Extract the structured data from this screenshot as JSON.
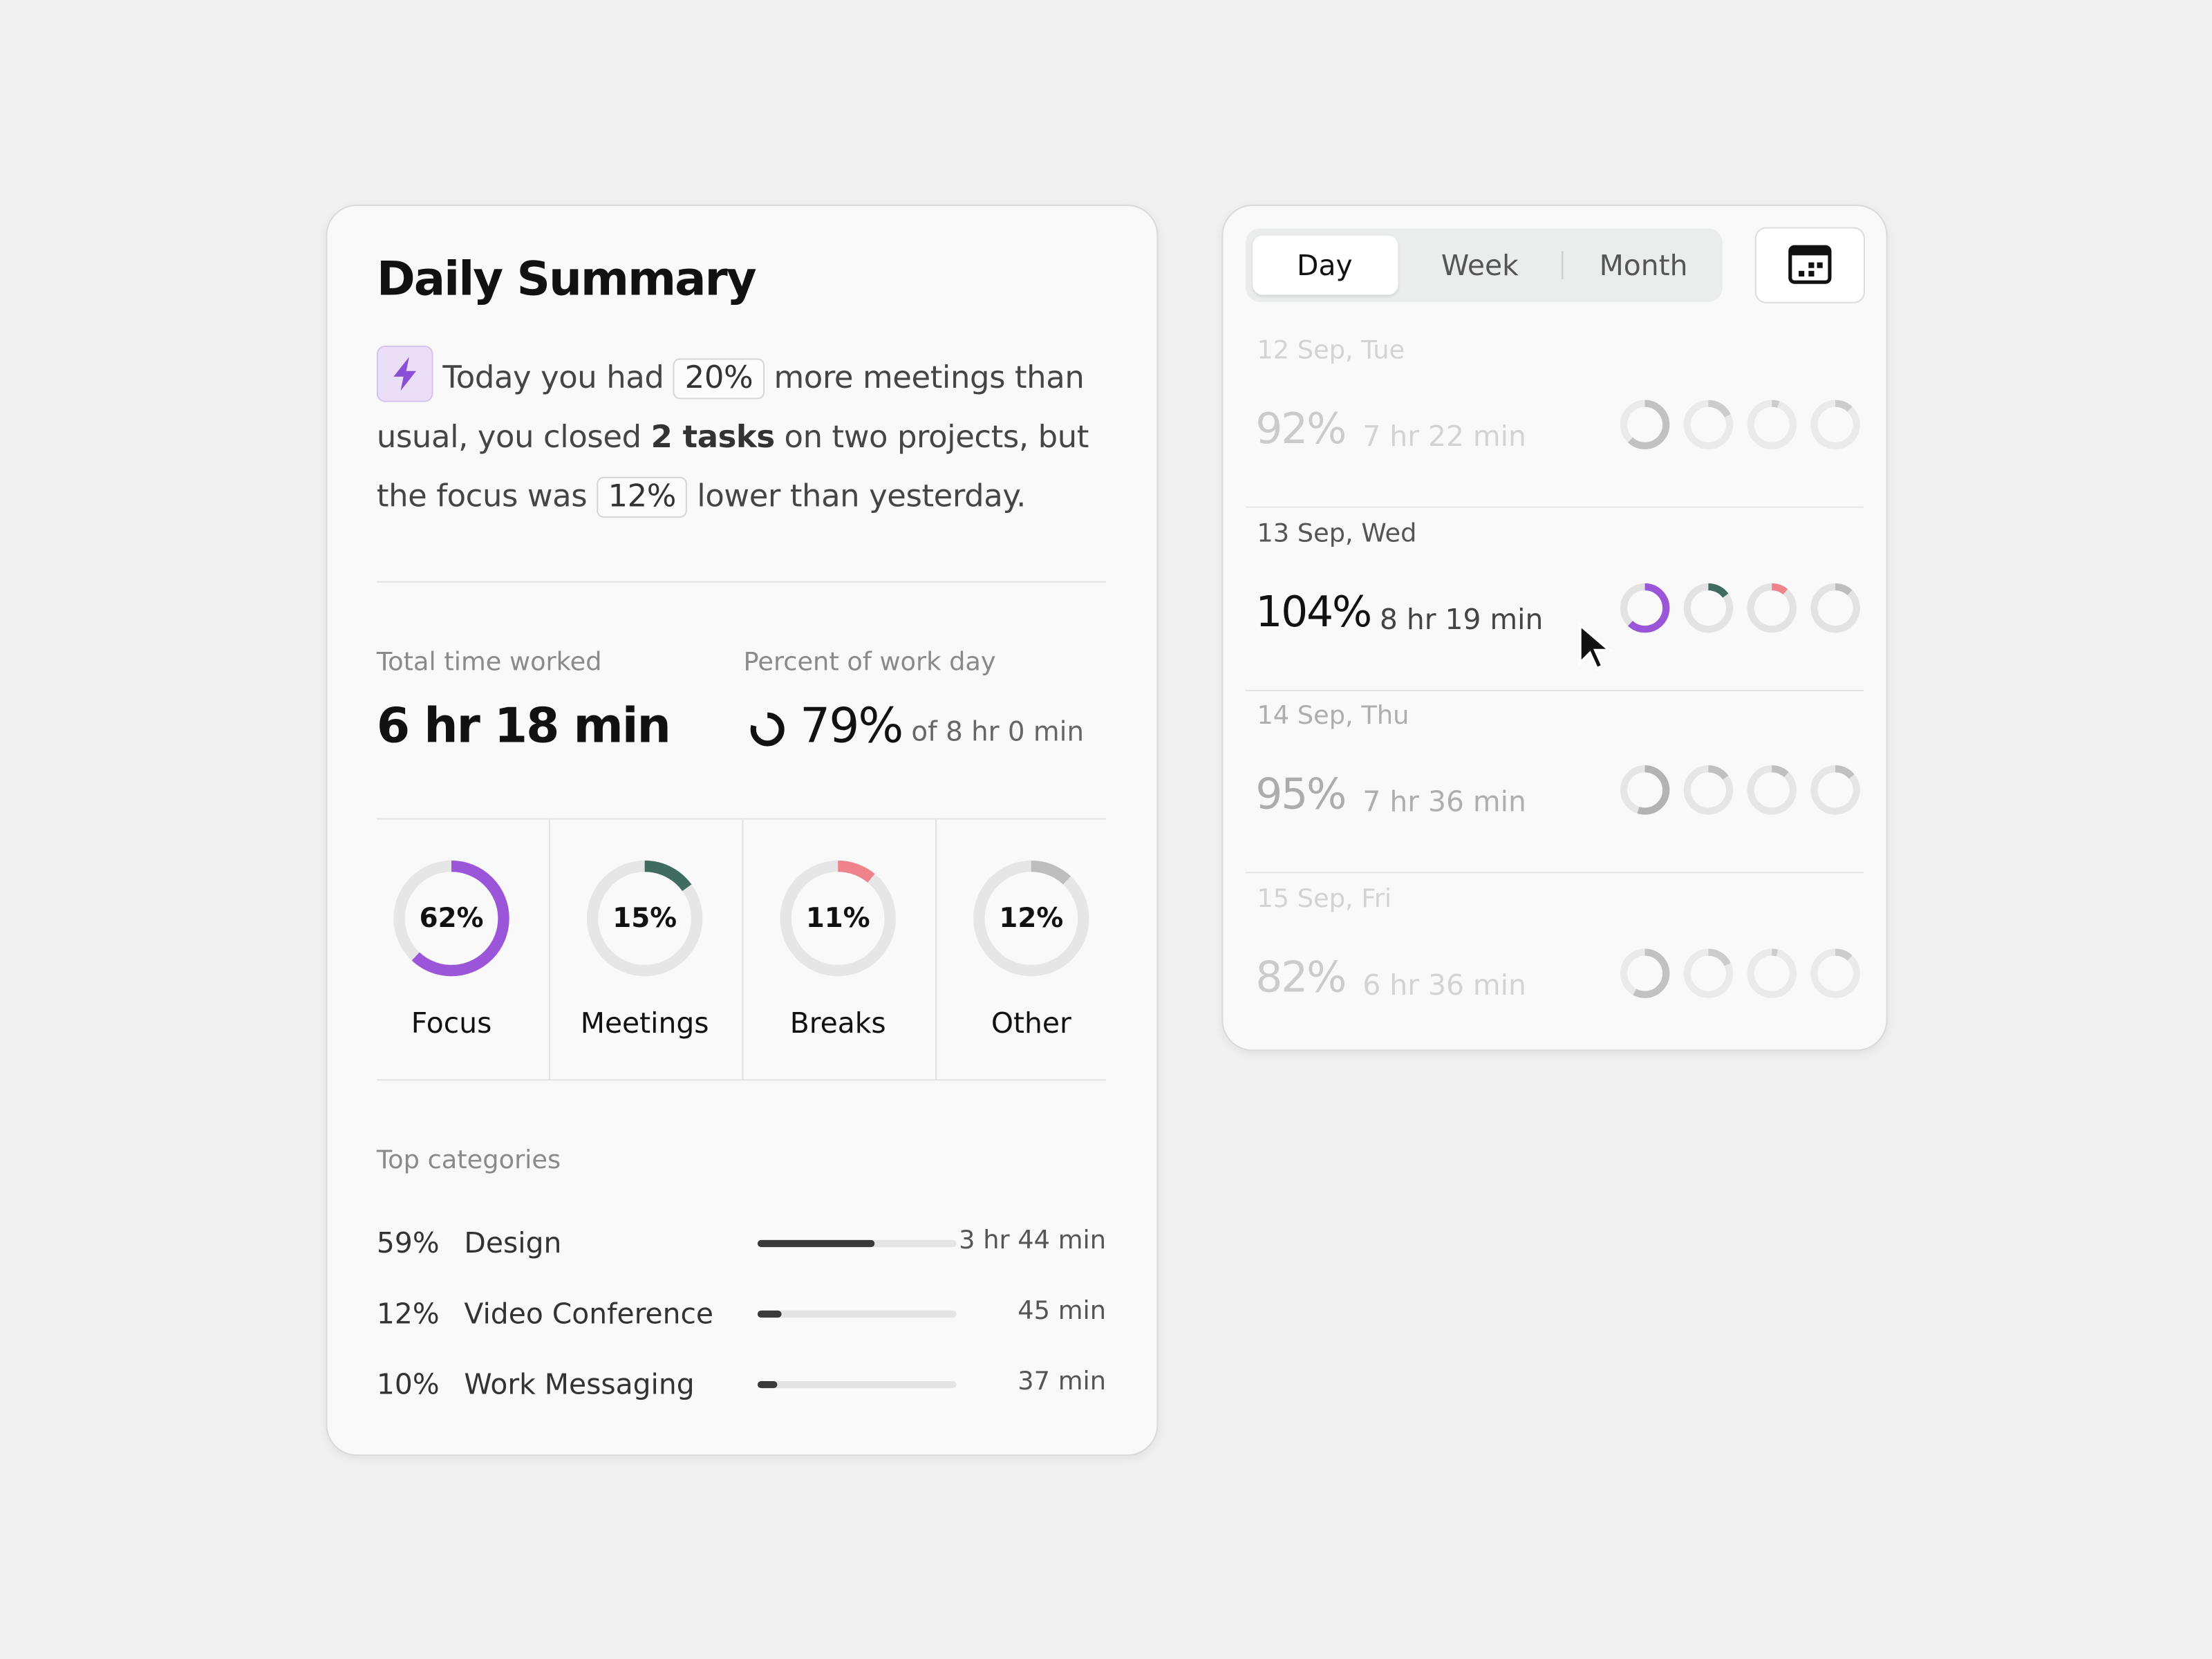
{
  "summary": {
    "title": "Daily Summary",
    "text": [
      "Today you had",
      "20%",
      "more meetings than usual, you closed",
      "2 tasks",
      "on two projects, but the focus was",
      "12%",
      "lower than yesterday."
    ],
    "stats": {
      "total_label": "Total time worked",
      "total": "6 hr 18 min",
      "percent_label": "Percent of work day",
      "percent": 79,
      "percent_text": "79%",
      "of": "of 8 hr 0 min"
    },
    "breakdown": [
      {
        "name": "Focus",
        "value": 62,
        "label": "62%",
        "color": "#9b55d8"
      },
      {
        "name": "Meetings",
        "value": 15,
        "label": "15%",
        "color": "#3f6b60"
      },
      {
        "name": "Breaks",
        "value": 11,
        "label": "11%",
        "color": "#ef838b"
      },
      {
        "name": "Other",
        "value": 12,
        "label": "12%",
        "color": "#bdbdbd"
      }
    ],
    "categories_title": "Top categories",
    "categories": [
      {
        "label": "59%",
        "value": 59,
        "name": "Design",
        "duration": "3 hr 44 min"
      },
      {
        "label": "12%",
        "value": 12,
        "name": "Video Conference",
        "duration": "45 min"
      },
      {
        "label": "10%",
        "value": 10,
        "name": "Work Messaging",
        "duration": "37 min"
      }
    ]
  },
  "history": {
    "tabs": [
      "Day",
      "Week",
      "Month"
    ],
    "active_tab": 0,
    "selected_day": 1,
    "days": [
      {
        "date": "12 Sep, Tue",
        "value": 92,
        "label": "92%",
        "duration": "7 hr 22 min",
        "rings": [
          62,
          18,
          5,
          12
        ]
      },
      {
        "date": "13 Sep, Wed",
        "value": 104,
        "label": "104%",
        "duration": "8 hr 19 min",
        "rings": [
          62,
          15,
          11,
          12
        ]
      },
      {
        "date": "14 Sep, Thu",
        "value": 95,
        "label": "95%",
        "duration": "7 hr 36 min",
        "rings": [
          55,
          15,
          12,
          14
        ]
      },
      {
        "date": "15 Sep, Fri",
        "value": 82,
        "label": "82%",
        "duration": "6 hr 36 min",
        "rings": [
          58,
          18,
          4,
          12
        ]
      }
    ]
  }
}
